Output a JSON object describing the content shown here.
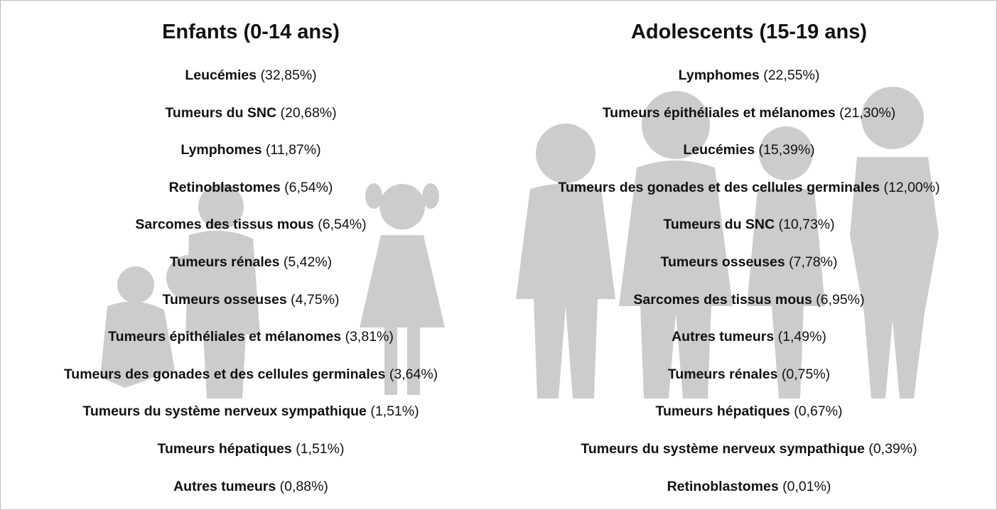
{
  "columns": [
    {
      "title": "Enfants (0-14 ans)",
      "items": [
        {
          "label": "Leucémies",
          "value": "(32,85%)"
        },
        {
          "label": "Tumeurs du SNC",
          "value": "(20,68%)"
        },
        {
          "label": "Lymphomes",
          "value": "(11,87%)"
        },
        {
          "label": "Retinoblastomes",
          "value": "(6,54%)"
        },
        {
          "label": "Sarcomes des tissus mous",
          "value": "(6,54%)"
        },
        {
          "label": "Tumeurs rénales",
          "value": "(5,42%)"
        },
        {
          "label": "Tumeurs osseuses",
          "value": "(4,75%)"
        },
        {
          "label": "Tumeurs épithéliales et mélanomes",
          "value": "(3,81%)"
        },
        {
          "label": "Tumeurs des gonades et des cellules germinales",
          "value": "(3,64%)"
        },
        {
          "label": "Tumeurs du système nerveux sympathique",
          "value": "(1,51%)"
        },
        {
          "label": "Tumeurs hépatiques",
          "value": "(1,51%)"
        },
        {
          "label": "Autres tumeurs",
          "value": "(0,88%)"
        }
      ]
    },
    {
      "title": "Adolescents (15-19 ans)",
      "items": [
        {
          "label": "Lymphomes",
          "value": "(22,55%)"
        },
        {
          "label": "Tumeurs épithéliales et mélanomes",
          "value": "(21,30%)"
        },
        {
          "label": "Leucémies",
          "value": "(15,39%)"
        },
        {
          "label": "Tumeurs des gonades et des cellules germinales",
          "value": "(12,00%)"
        },
        {
          "label": "Tumeurs du SNC",
          "value": "(10,73%)"
        },
        {
          "label": "Tumeurs osseuses",
          "value": "(7,78%)"
        },
        {
          "label": "Sarcomes des tissus mous",
          "value": "(6,95%)"
        },
        {
          "label": "Autres tumeurs",
          "value": "(1,49%)"
        },
        {
          "label": "Tumeurs rénales",
          "value": "(0,75%)"
        },
        {
          "label": "Tumeurs hépatiques",
          "value": "(0,67%)"
        },
        {
          "label": "Tumeurs du système nerveux sympathique",
          "value": "(0,39%)"
        },
        {
          "label": "Retinoblastomes",
          "value": "(0,01%)"
        }
      ]
    }
  ]
}
